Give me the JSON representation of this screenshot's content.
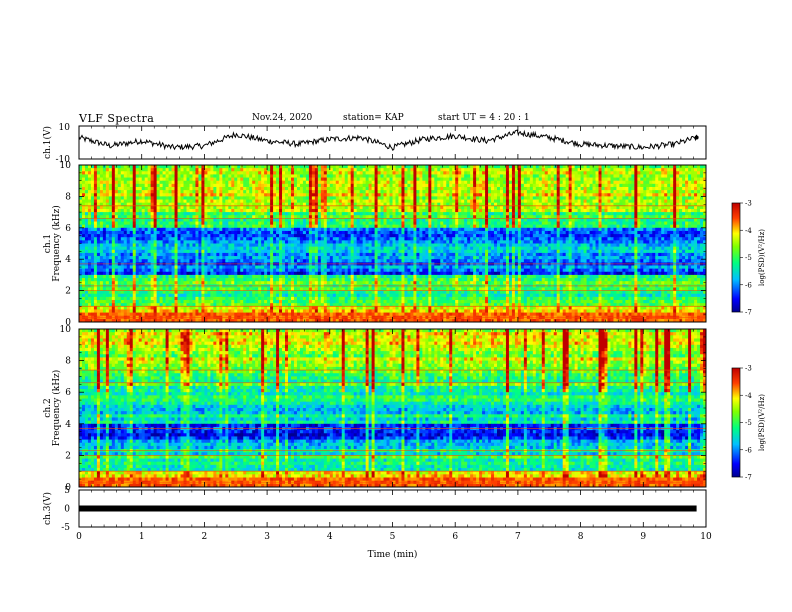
{
  "header": {
    "title": "VLF Spectra",
    "date": "Nov.24, 2020",
    "station": "station= KAP",
    "start": "start  UT =   4 : 20 : 1"
  },
  "chart_data": [
    {
      "type": "line",
      "name": "ch1-waveform-panel",
      "ylabel": "ch.1(V)",
      "ylim": [
        -10,
        10
      ],
      "ytick_labels": [
        "10",
        "-10"
      ],
      "xlim": [
        0,
        10
      ],
      "x": [
        0.0,
        0.5,
        1.0,
        1.5,
        2.0,
        2.5,
        3.0,
        3.5,
        4.0,
        4.5,
        5.0,
        5.5,
        6.0,
        6.5,
        7.0,
        7.5,
        8.0,
        8.5,
        9.0,
        9.5,
        9.85
      ],
      "values": [
        3,
        -2,
        1,
        -3,
        -2,
        5,
        1,
        -1,
        2,
        3,
        -3,
        2,
        4,
        1,
        6,
        3,
        -1,
        -2,
        -3,
        -1,
        3
      ]
    },
    {
      "type": "heatmap",
      "name": "ch1-spectrogram",
      "ylabel": "Frequency (kHz)",
      "channel_label": "ch.1",
      "ylim": [
        0,
        10
      ],
      "yticks": [
        0,
        2,
        4,
        6,
        8,
        10
      ],
      "xlim": [
        0,
        10
      ],
      "colorbar": {
        "label": "log(PSD)(V²/Hz)",
        "range": [
          -7,
          -3
        ],
        "ticks": [
          -3,
          -4,
          -5,
          -6,
          -7
        ],
        "tick_labels": [
          "-3",
          "-4",
          "-5",
          "-6",
          "-7"
        ]
      },
      "band_levels_by_khz": [
        -4.3,
        -5.2,
        -5.0,
        -6.2,
        -5.8,
        -6.3,
        -5.0,
        -4.6,
        -4.5,
        -4.6
      ]
    },
    {
      "type": "heatmap",
      "name": "ch2-spectrogram",
      "ylabel": "Frequency (kHz)",
      "channel_label": "ch.2",
      "ylim": [
        0,
        10
      ],
      "yticks": [
        0,
        2,
        4,
        6,
        8,
        10
      ],
      "xlim": [
        0,
        10
      ],
      "colorbar": {
        "label": "log(PSD)(V²/Hz)",
        "range": [
          -7,
          -3
        ],
        "ticks": [
          -3,
          -4,
          -5,
          -6,
          -7
        ],
        "tick_labels": [
          "-3",
          "-4",
          "-5",
          "-6",
          "-7"
        ]
      },
      "band_levels_by_khz": [
        -4.4,
        -5.2,
        -5.6,
        -6.5,
        -5.6,
        -5.4,
        -5.1,
        -4.9,
        -4.6,
        -4.4
      ]
    },
    {
      "type": "line",
      "name": "ch3-waveform-panel",
      "ylabel": "ch.3(V)",
      "ylim": [
        -5,
        5
      ],
      "ytick_labels": [
        "5",
        "0",
        "-5"
      ],
      "xlim": [
        0,
        10
      ],
      "x": [
        0,
        9.85
      ],
      "values": [
        0,
        0
      ]
    }
  ],
  "xaxis": {
    "label": "Time (min)",
    "tick_labels": [
      "0",
      "1",
      "2",
      "3",
      "4",
      "5",
      "6",
      "7",
      "8",
      "9",
      "10"
    ]
  }
}
